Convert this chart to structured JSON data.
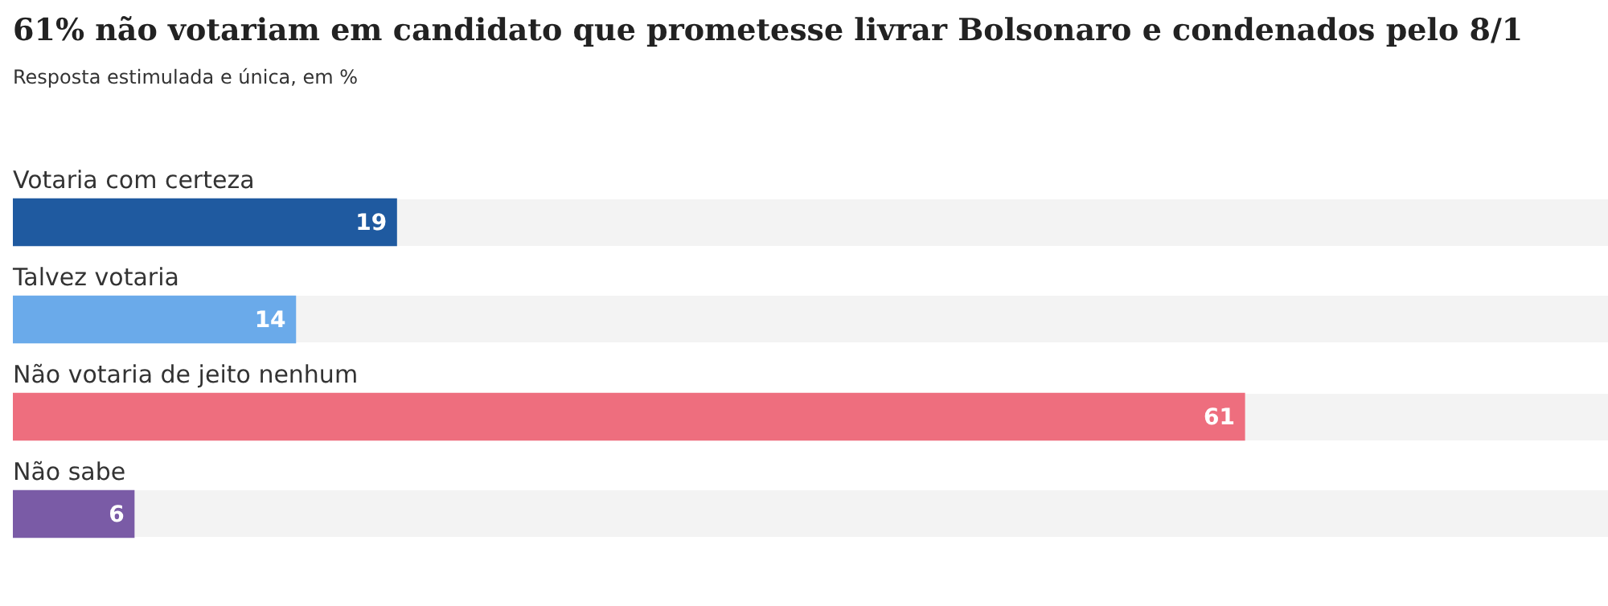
{
  "chart_data": {
    "type": "bar",
    "orientation": "horizontal",
    "title": "61% não votariam em candidato que prometesse livrar Bolsonaro e condenados pelo 8/1",
    "subtitle": "Resposta estimulada e única, em %",
    "categories": [
      "Votaria com certeza",
      "Talvez votaria",
      "Não votaria de jeito nenhum",
      "Não sabe"
    ],
    "values": [
      19,
      14,
      61,
      6
    ],
    "colors": [
      "#1f5aa0",
      "#6aaaea",
      "#ee6e7e",
      "#7a5ba6"
    ],
    "xlim": [
      0,
      79
    ],
    "data_labels": true,
    "legend": false,
    "tick_labels": false
  }
}
